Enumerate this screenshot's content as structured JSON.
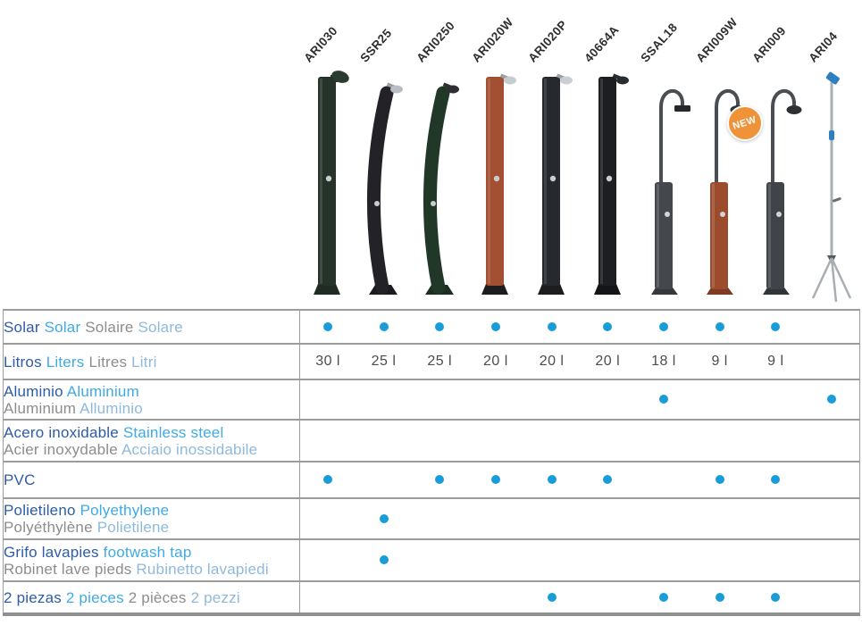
{
  "colors": {
    "spanish_text": "#2e5ca8",
    "english_text": "#3fabe4",
    "french_text": "#8d8d8d",
    "italian_text": "#8fb9dc",
    "feature_dot": "#1a9cd8",
    "badge_orange": "#ef9238",
    "table_border": "#9c9c9c"
  },
  "badge": {
    "text": "NEW"
  },
  "products": [
    {
      "code": "ARI030",
      "shape": "straight",
      "body": "#25332a",
      "base": "#1f2b23",
      "head": "#2c3b31",
      "head_style": "oval"
    },
    {
      "code": "SSR25",
      "shape": "curved",
      "body": "#232327",
      "base": "#1c1c20",
      "head": "#b9bec4",
      "head_style": "chrome"
    },
    {
      "code": "ARI0250",
      "shape": "curved",
      "body": "#213829",
      "base": "#1b2e21",
      "head": "#2f2f33",
      "head_style": "dark"
    },
    {
      "code": "ARI020W",
      "shape": "straight",
      "body": "#a34f31",
      "base": "#1d1d1f",
      "head": "#c6cbd0",
      "head_style": "chrome"
    },
    {
      "code": "ARI020P",
      "shape": "straight",
      "body": "#26292d",
      "base": "#1d1d1f",
      "head": "#caced2",
      "head_style": "chrome"
    },
    {
      "code": "40664A",
      "shape": "straight",
      "body": "#1c1e22",
      "base": "#141518",
      "head": "#2a2d30",
      "head_style": "dark"
    },
    {
      "code": "SSAL18",
      "shape": "gooseneck",
      "body": "#44484d",
      "base": "#35383c",
      "head": "#26282b",
      "head_style": "square"
    },
    {
      "code": "ARI009W",
      "shape": "gooseneck",
      "body": "#9d4b2d",
      "base": "#7e3a22",
      "head": "#303338",
      "head_style": "round",
      "badge": true
    },
    {
      "code": "ARI009",
      "shape": "gooseneck",
      "body": "#404449",
      "base": "#313438",
      "head": "#2e3134",
      "head_style": "round"
    },
    {
      "code": "ARI04",
      "shape": "tripod",
      "body": "#a9aeb3",
      "base": "#54585c",
      "head": "#2d7fc0",
      "head_style": "blue"
    }
  ],
  "table": {
    "rows": [
      {
        "name": "solar",
        "label": [
          [
            {
              "t": "Solar",
              "l": "es"
            },
            {
              "t": "Solar",
              "l": "en"
            },
            {
              "t": "Solaire",
              "l": "fr"
            },
            {
              "t": "Solare",
              "l": "it"
            }
          ]
        ],
        "cells": [
          "dot",
          "dot",
          "dot",
          "dot",
          "dot",
          "dot",
          "dot",
          "dot",
          "dot",
          ""
        ]
      },
      {
        "name": "litros",
        "label": [
          [
            {
              "t": "Litros",
              "l": "es"
            },
            {
              "t": "Liters",
              "l": "en"
            },
            {
              "t": "Litres",
              "l": "fr"
            },
            {
              "t": "Litri",
              "l": "it"
            }
          ]
        ],
        "cells": [
          "30 l",
          "25 l",
          "25 l",
          "20 l",
          "20 l",
          "20 l",
          "18 l",
          "9 l",
          "9 l",
          ""
        ]
      },
      {
        "name": "aluminio",
        "label": [
          [
            {
              "t": "Aluminio",
              "l": "es"
            },
            {
              "t": "Aluminium",
              "l": "en"
            }
          ],
          [
            {
              "t": "Aluminium",
              "l": "fr"
            },
            {
              "t": "Alluminio",
              "l": "it"
            }
          ]
        ],
        "cells": [
          "",
          "",
          "",
          "",
          "",
          "",
          "dot",
          "",
          "",
          "dot"
        ]
      },
      {
        "name": "acero-inoxidable",
        "label": [
          [
            {
              "t": "Acero inoxidable",
              "l": "es"
            },
            {
              "t": "Stainless steel",
              "l": "en"
            }
          ],
          [
            {
              "t": "Acier inoxydable",
              "l": "fr"
            },
            {
              "t": "Acciaio inossidabile",
              "l": "it"
            }
          ]
        ],
        "cells": [
          "",
          "",
          "",
          "",
          "",
          "",
          "",
          "",
          "",
          ""
        ]
      },
      {
        "name": "pvc",
        "label": [
          [
            {
              "t": "PVC",
              "l": "es"
            }
          ]
        ],
        "cells": [
          "dot",
          "",
          "dot",
          "dot",
          "dot",
          "dot",
          "",
          "dot",
          "dot",
          ""
        ]
      },
      {
        "name": "polietileno",
        "label": [
          [
            {
              "t": "Polietileno",
              "l": "es"
            },
            {
              "t": "Polyethylene",
              "l": "en"
            }
          ],
          [
            {
              "t": "Polyéthylène",
              "l": "fr"
            },
            {
              "t": "Polietilene",
              "l": "it"
            }
          ]
        ],
        "cells": [
          "",
          "dot",
          "",
          "",
          "",
          "",
          "",
          "",
          "",
          ""
        ]
      },
      {
        "name": "grifo-lavapies",
        "label": [
          [
            {
              "t": "Grifo lavapies",
              "l": "es"
            },
            {
              "t": "footwash tap",
              "l": "en"
            }
          ],
          [
            {
              "t": "Robinet lave pieds",
              "l": "fr"
            },
            {
              "t": "Rubinetto lavapiedi",
              "l": "it"
            }
          ]
        ],
        "cells": [
          "",
          "dot",
          "",
          "",
          "",
          "",
          "",
          "",
          "",
          ""
        ]
      },
      {
        "name": "dos-piezas",
        "label": [
          [
            {
              "t": "2 piezas",
              "l": "es"
            },
            {
              "t": "2 pieces",
              "l": "en"
            },
            {
              "t": "2 pièces",
              "l": "fr"
            },
            {
              "t": "2 pezzi",
              "l": "it"
            }
          ]
        ],
        "cells": [
          "",
          "",
          "",
          "",
          "dot",
          "",
          "dot",
          "dot",
          "dot",
          ""
        ]
      }
    ]
  }
}
